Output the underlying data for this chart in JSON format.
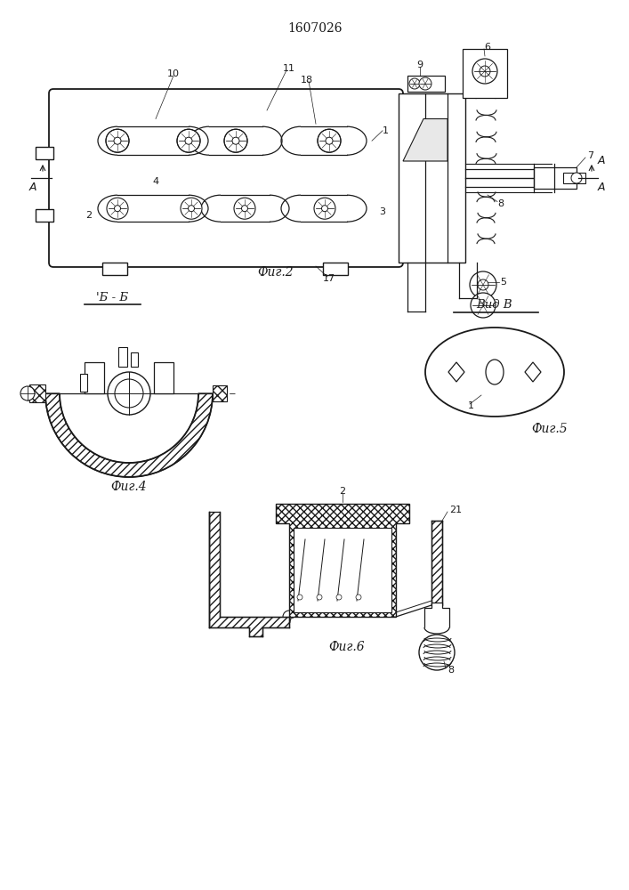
{
  "title": "1607026",
  "fig2_label": "Фиг.2",
  "fig4_label": "Фиг.4",
  "fig5_label": "Фиг.5",
  "fig6_label": "Фиг.6",
  "section_bb": "Б - Б",
  "view_v": "Вид В",
  "bg_color": "#ffffff",
  "line_color": "#1a1a1a"
}
